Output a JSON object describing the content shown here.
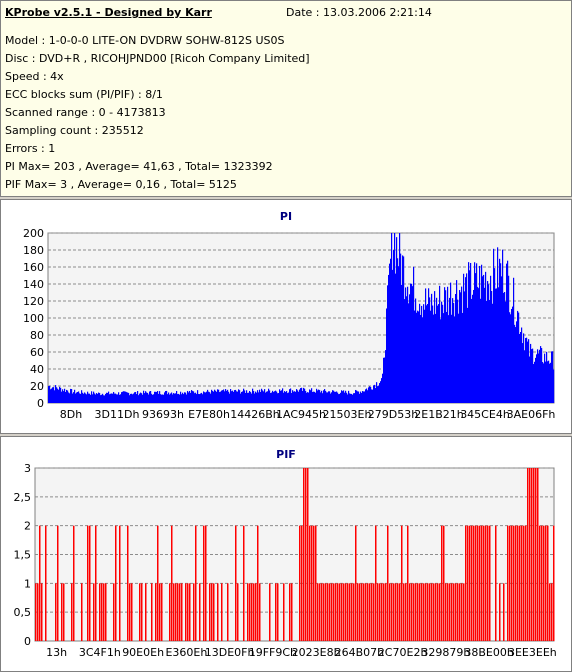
{
  "header": {
    "app_title": "KProbe v2.5.1 - Designed by Karr",
    "date": "Date : 13.03.2006 2:21:14",
    "lines": [
      "Model : 1-0-0-0 LITE-ON DVDRW SOHW-812S  US0S",
      "Disc : DVD+R , RICOHJPND00 [Ricoh Company Limited]",
      "Speed : 4x",
      "ECC blocks sum (PI/PIF) : 8/1",
      "Scanned range : 0 - 4173813",
      "Sampling count : 235512",
      "Errors : 1",
      "PI Max= 203 , Average= 41,63 , Total= 1323392",
      "PIF Max= 3 , Average= 0,16 , Total= 5125"
    ]
  },
  "chart_data": [
    {
      "type": "area",
      "title": "PI",
      "color": "#0000ff",
      "ylim": [
        0,
        200
      ],
      "yticks": [
        "0",
        "20",
        "40",
        "60",
        "80",
        "100",
        "120",
        "140",
        "160",
        "180",
        "200"
      ],
      "xticks": [
        "8Dh",
        "3D11Dh",
        "93693h",
        "E7E80h",
        "14426Bh",
        "1AC945h",
        "21503Eh",
        "279D53h",
        "2E1B21h",
        "345CE4h",
        "3AE06Fh"
      ],
      "grid": true,
      "series": [
        {
          "x": [
            0,
            5,
            10,
            20,
            30,
            40,
            50,
            60,
            62,
            64,
            66,
            68,
            70,
            72,
            75,
            78,
            80,
            84,
            88,
            90,
            95,
            100
          ],
          "y": [
            20,
            13,
            11,
            12,
            13,
            14,
            15,
            12,
            14,
            20,
            28,
            200,
            160,
            135,
            115,
            120,
            130,
            140,
            150,
            158,
            60,
            50
          ]
        }
      ]
    },
    {
      "type": "bar",
      "title": "PIF",
      "color": "#ff0000",
      "ylim": [
        0,
        3
      ],
      "yticks": [
        "0",
        "0,5",
        "1",
        "1,5",
        "2",
        "2,5",
        "3"
      ],
      "xticks": [
        "13h",
        "3C4F1h",
        "90E0Eh",
        "E360Eh",
        "13DE0Fh",
        "19FF9Ch",
        "2023E8h",
        "264B07h",
        "2C70E2h",
        "329879h",
        "38BE00h",
        "3EE3EEh"
      ],
      "grid": true,
      "series": [
        {
          "x": [
            0,
            10,
            20,
            30,
            40,
            45,
            50,
            52,
            55,
            60,
            70,
            80,
            85,
            90,
            96,
            98,
            100
          ],
          "y": [
            1,
            1,
            0,
            1,
            1,
            0,
            1,
            3,
            1,
            1,
            1,
            1,
            2,
            1,
            3,
            2,
            1
          ]
        }
      ]
    }
  ]
}
